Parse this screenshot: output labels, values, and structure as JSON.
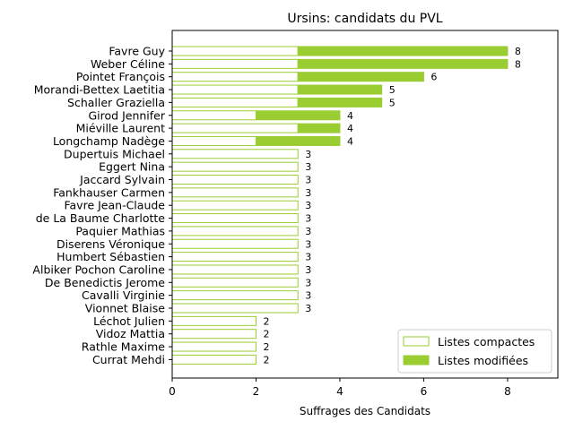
{
  "chart_data": {
    "type": "bar",
    "orientation": "horizontal",
    "title": "Ursins: candidats du PVL",
    "xlabel": "Suffrages des Candidats",
    "ylabel": "",
    "xlim": [
      0,
      9.2
    ],
    "xticks": [
      0,
      2,
      4,
      6,
      8
    ],
    "legend_position": "bottom-right",
    "colors": {
      "compact_edge": "#9acd32",
      "modified_fill": "#9acd32"
    },
    "categories": [
      "Favre Guy",
      "Weber Céline",
      "Pointet François",
      "Morandi-Bettex Laetitia",
      "Schaller Graziella",
      "Girod Jennifer",
      "Miéville Laurent",
      "Longchamp Nadège",
      "Dupertuis Michael",
      "Eggert Nina",
      "Jaccard Sylvain",
      "Fankhauser Carmen",
      "Favre Jean-Claude",
      "de La Baume Charlotte",
      "Paquier Mathias",
      "Diserens Véronique",
      "Humbert Sébastien",
      "Albiker Pochon Caroline",
      "De Benedictis Jerome",
      "Cavalli Virginie",
      "Vionnet Blaise",
      "Léchot Julien",
      "Vidoz Mattia",
      "Rathle Maxime",
      "Currat Mehdi"
    ],
    "series": [
      {
        "name": "Listes compactes",
        "values": [
          3,
          3,
          3,
          3,
          3,
          2,
          3,
          2,
          3,
          3,
          3,
          3,
          3,
          3,
          3,
          3,
          3,
          3,
          3,
          3,
          3,
          2,
          2,
          2,
          2
        ]
      },
      {
        "name": "Listes modifiées",
        "values": [
          5,
          5,
          3,
          2,
          2,
          2,
          1,
          2,
          0,
          0,
          0,
          0,
          0,
          0,
          0,
          0,
          0,
          0,
          0,
          0,
          0,
          0,
          0,
          0,
          0
        ]
      }
    ],
    "totals": [
      8,
      8,
      6,
      5,
      5,
      4,
      4,
      4,
      3,
      3,
      3,
      3,
      3,
      3,
      3,
      3,
      3,
      3,
      3,
      3,
      3,
      2,
      2,
      2,
      2
    ]
  }
}
